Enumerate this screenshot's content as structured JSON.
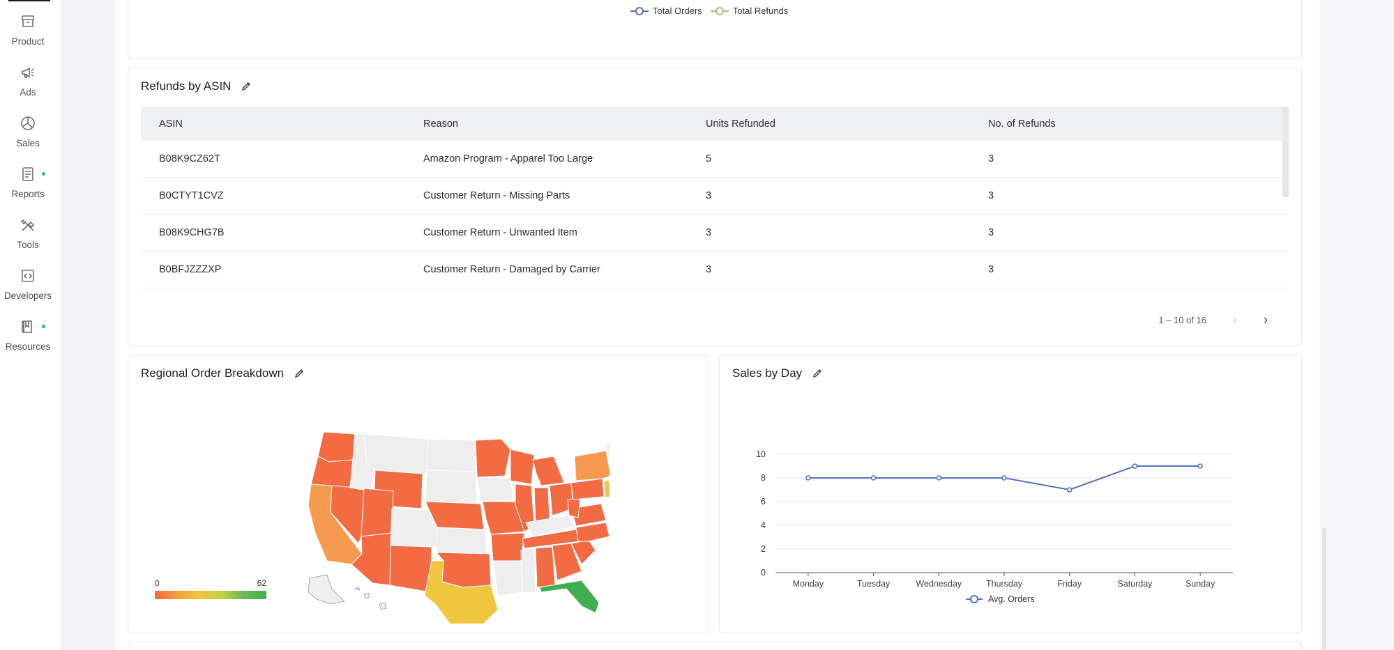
{
  "sidebar": {
    "items": [
      {
        "label": "Product",
        "icon": "archive-box-icon",
        "dot": false
      },
      {
        "label": "Ads",
        "icon": "megaphone-icon",
        "dot": false
      },
      {
        "label": "Sales",
        "icon": "pie-chart-icon",
        "dot": false
      },
      {
        "label": "Reports",
        "icon": "document-report-icon",
        "dot": true
      },
      {
        "label": "Tools",
        "icon": "tools-icon",
        "dot": false
      },
      {
        "label": "Developers",
        "icon": "code-icon",
        "dot": false
      },
      {
        "label": "Resources",
        "icon": "book-icon",
        "dot": true
      }
    ],
    "dot_color": "#2bb673"
  },
  "top_legend": {
    "items": [
      {
        "label": "Total Orders",
        "color": "#5470c6"
      },
      {
        "label": "Total Refunds",
        "color": "#91cc75"
      }
    ]
  },
  "refunds_card": {
    "title": "Refunds by ASIN",
    "columns": [
      "ASIN",
      "Reason",
      "Units Refunded",
      "No. of Refunds"
    ],
    "rows": [
      [
        "B08K9CZ62T",
        "Amazon Program - Apparel Too Large",
        "5",
        "3"
      ],
      [
        "B0CTYT1CVZ",
        "Customer Return - Missing Parts",
        "3",
        "3"
      ],
      [
        "B08K9CHG7B",
        "Customer Return - Unwanted Item",
        "3",
        "3"
      ],
      [
        "B0BFJZZZXP",
        "Customer Return - Damaged by Carrier",
        "3",
        "3"
      ]
    ],
    "pagination": "1 – 10 of 16",
    "prev_label": "‹",
    "next_label": "›"
  },
  "regional_card": {
    "title": "Regional Order Breakdown",
    "scale_min": "0",
    "scale_max": "62",
    "colors": {
      "high": "#3fae50",
      "mid": "#f0c63f",
      "low": "#f06a3f",
      "none": "#eeeeee"
    }
  },
  "sales_card": {
    "title": "Sales by Day"
  },
  "chart_data": {
    "type": "line",
    "categories": [
      "Monday",
      "Tuesday",
      "Wednesday",
      "Thursday",
      "Friday",
      "Saturday",
      "Sunday"
    ],
    "series": [
      {
        "name": "Avg. Orders",
        "values": [
          8,
          8,
          8,
          8,
          7,
          9,
          9
        ],
        "color": "#5470c6"
      }
    ],
    "ylim": [
      0,
      10
    ],
    "yticks": [
      0,
      2,
      4,
      6,
      8,
      10
    ],
    "grid": true,
    "legend": "bottom"
  }
}
